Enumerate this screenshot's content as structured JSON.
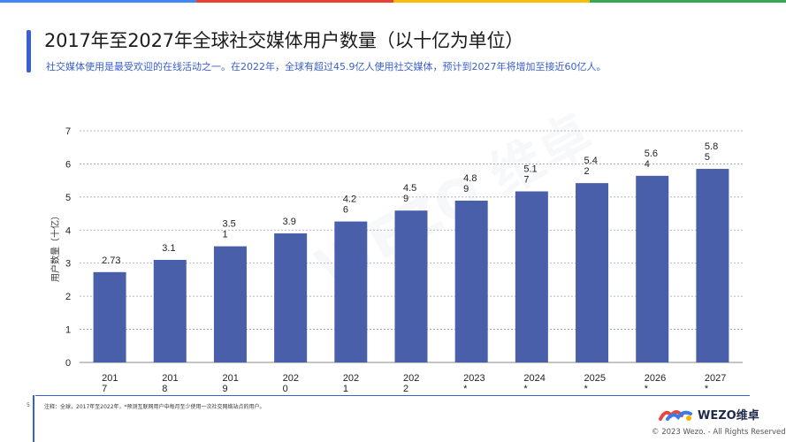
{
  "header": {
    "title": "2017年至2027年全球社交媒体用户数量（以十亿为单位）",
    "subtitle": "社交媒体使用是最受欢迎的在线活动之一。在2022年，全球有超过45.9亿人使用社交媒体，预计到2027年将增加至接近60亿人。",
    "top_colors": [
      "#4285f4",
      "#ea4335",
      "#fbbc05",
      "#34a853"
    ]
  },
  "chart_data": {
    "type": "bar",
    "categories": [
      "2017",
      "2018",
      "2019",
      "2020",
      "2021",
      "2022",
      "2023*",
      "2024*",
      "2025*",
      "2026*",
      "2027*"
    ],
    "category_labels": [
      [
        "201",
        "7"
      ],
      [
        "201",
        "8"
      ],
      [
        "201",
        "9"
      ],
      [
        "202",
        "0"
      ],
      [
        "202",
        "1"
      ],
      [
        "202",
        "2"
      ],
      [
        "2023",
        "*"
      ],
      [
        "2024",
        "*"
      ],
      [
        "2025",
        "*"
      ],
      [
        "2026",
        "*"
      ],
      [
        "2027",
        "*"
      ]
    ],
    "values": [
      2.73,
      3.1,
      3.51,
      3.9,
      4.26,
      4.59,
      4.89,
      5.17,
      5.42,
      5.64,
      5.85
    ],
    "value_labels": [
      [
        "2.73"
      ],
      [
        "3.1"
      ],
      [
        "3.5",
        "1"
      ],
      [
        "3.9"
      ],
      [
        "4.2",
        "6"
      ],
      [
        "4.5",
        "9"
      ],
      [
        "4.8",
        "9"
      ],
      [
        "5.1",
        "7"
      ],
      [
        "5.4",
        "2"
      ],
      [
        "5.6",
        "4"
      ],
      [
        "5.8",
        "5"
      ]
    ],
    "ylabel": "用户数量（十亿）",
    "ylim": [
      0,
      7
    ],
    "yticks": [
      0,
      1,
      2,
      3,
      4,
      5,
      6,
      7
    ],
    "grid": true,
    "bar_color": "#4a5faa"
  },
  "footer": {
    "page_number": "5",
    "footnote": "注释：全球，2017年至2022年，*预测互联网用户中每月至少使用一次社交网络站点的用户。",
    "logo_text": "WEZO维卓",
    "copyright": "© 2023 Wezo. - All Rights Reserved"
  }
}
